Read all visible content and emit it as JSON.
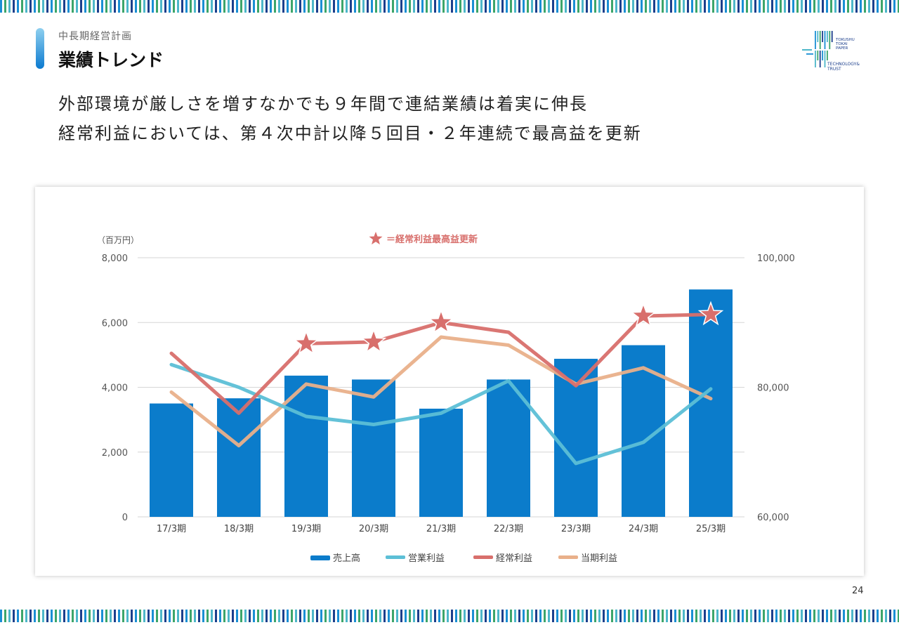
{
  "header": {
    "subtitle": "中長期経営計画",
    "title": "業績トレンド"
  },
  "headline": {
    "line1": "外部環境が厳しさを増すなかでも９年間で連結業績は着実に伸長",
    "line2": "経常利益においては、第４次中計以降５回目・２年連続で最高益を更新"
  },
  "logo": {
    "lines": [
      "TOKUSHU",
      "TOKAI",
      "PAPER"
    ],
    "tagline_1": "TECHNOLOGY&",
    "tagline_2": "TRUST",
    "colors": [
      "#1a8fd4",
      "#4db7c9",
      "#3da56a",
      "#1c3f8c"
    ]
  },
  "page_number": "24",
  "colors": {
    "sales_bar": "#0b7ccb",
    "operating_profit": "#5cbfd6",
    "ordinary_profit": "#d86f6c",
    "net_profit": "#e9b08a",
    "star_note": "#d86f6c",
    "grid": "#d6d6d6",
    "stripe": [
      "#1a8fd4",
      "#3da56a",
      "#4db7c9",
      "#1c3f8c"
    ]
  },
  "chart_data": {
    "type": "bar",
    "unit_label": "（百万円）",
    "annotation": "＝経常利益最高益更新",
    "categories": [
      "17/3期",
      "18/3期",
      "19/3期",
      "20/3期",
      "21/3期",
      "22/3期",
      "23/3期",
      "24/3期",
      "25/3期"
    ],
    "left_axis": {
      "ticks": [
        "0",
        "2,000",
        "4,000",
        "6,000",
        "8,000"
      ],
      "ylim": [
        0,
        8000
      ]
    },
    "right_axis": {
      "ticks": [
        "60,000",
        "80,000",
        "100,000"
      ],
      "ylim": [
        60000,
        100000
      ]
    },
    "grid": true,
    "legend_position": "bottom",
    "series": [
      {
        "name": "売上高",
        "type": "bar",
        "axis": "right",
        "values": [
          77500,
          78300,
          81800,
          81200,
          76700,
          81200,
          84400,
          86500,
          95100
        ]
      },
      {
        "name": "営業利益",
        "type": "line",
        "axis": "left",
        "values": [
          4700,
          4000,
          3100,
          2850,
          3200,
          4200,
          1650,
          2300,
          3950
        ]
      },
      {
        "name": "経常利益",
        "type": "line",
        "axis": "left",
        "values": [
          5050,
          3200,
          5350,
          5400,
          6000,
          5700,
          4050,
          6200,
          6250
        ],
        "record_highs": [
          "19/3期",
          "20/3期",
          "21/3期",
          "24/3期",
          "25/3期"
        ]
      },
      {
        "name": "当期利益",
        "type": "line",
        "axis": "left",
        "values": [
          3850,
          2200,
          4100,
          3700,
          5550,
          5300,
          4100,
          4600,
          3650
        ]
      }
    ]
  }
}
